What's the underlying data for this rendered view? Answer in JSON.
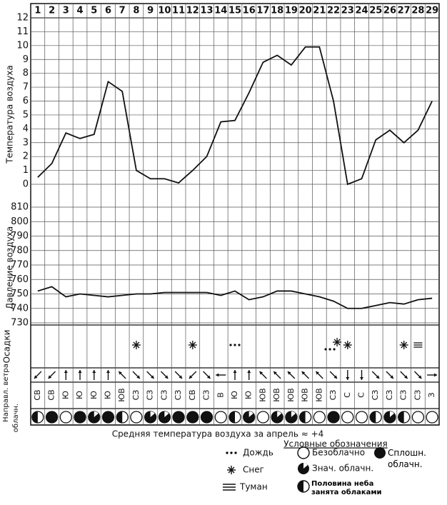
{
  "chart_data": [
    {
      "type": "line",
      "y_label": "Температура воздуха",
      "categories": [
        "1",
        "2",
        "3",
        "4",
        "5",
        "6",
        "7",
        "8",
        "9",
        "10",
        "11",
        "12",
        "13",
        "14",
        "15",
        "16",
        "17",
        "18",
        "19",
        "20",
        "21",
        "22",
        "23",
        "24",
        "25",
        "26",
        "27",
        "28",
        "29"
      ],
      "values": [
        0.5,
        1.5,
        3.7,
        3.3,
        3.6,
        7.4,
        6.7,
        1.0,
        0.4,
        0.4,
        0.1,
        1.0,
        2.0,
        4.5,
        4.6,
        6.6,
        8.8,
        9.3,
        8.6,
        9.9,
        9.9,
        6.0,
        0,
        0.4,
        3.2,
        3.9,
        3.0,
        3.9,
        6.0
      ],
      "color": "#111111",
      "ylim": [
        0,
        12
      ],
      "yticks": [
        0,
        1,
        2,
        3,
        4,
        5,
        6,
        7,
        8,
        9,
        10,
        11,
        12
      ],
      "grid": true
    },
    {
      "type": "line",
      "y_label": "Давление воздуха",
      "values": [
        752,
        755,
        748,
        750,
        749,
        748,
        749,
        750,
        750,
        751,
        751,
        751,
        751,
        749,
        752,
        746,
        748,
        752,
        752,
        750,
        748,
        745,
        740,
        740,
        742,
        744,
        743,
        746,
        747
      ],
      "color": "#111111",
      "ylim": [
        730,
        810
      ],
      "yticks": [
        730,
        740,
        750,
        760,
        770,
        780,
        790,
        800,
        810
      ],
      "grid": true
    }
  ],
  "precipitation": {
    "label": "Осадки",
    "days": [
      null,
      null,
      null,
      null,
      null,
      null,
      null,
      [
        "snow"
      ],
      null,
      null,
      null,
      [
        "snow"
      ],
      null,
      null,
      [
        "rain"
      ],
      null,
      null,
      null,
      null,
      null,
      null,
      [
        "rain",
        "snow"
      ],
      [
        "snow"
      ],
      null,
      null,
      null,
      [
        "snow"
      ],
      [
        "fog"
      ],
      null
    ]
  },
  "wind": {
    "label": "Направл. ветра",
    "directions": [
      "СВ",
      "СВ",
      "Ю",
      "Ю",
      "Ю",
      "Ю",
      "ЮВ",
      "СЗ",
      "СЗ",
      "СЗ",
      "СЗ",
      "СВ",
      "СЗ",
      "В",
      "Ю",
      "Ю",
      "ЮВ",
      "ЮВ",
      "ЮВ",
      "ЮВ",
      "ЮВ",
      "СЗ",
      "С",
      "С",
      "СЗ",
      "СЗ",
      "СЗ",
      "СЗ",
      "З"
    ]
  },
  "cloudiness": {
    "label": "облачн.",
    "days": [
      "half",
      "full",
      "clear",
      "full",
      "significant",
      "full",
      "half",
      "clear",
      "significant",
      "significant",
      "full",
      "full",
      "full",
      "clear",
      "half",
      "significant",
      "clear",
      "significant",
      "significant",
      "half",
      "clear",
      "full",
      "clear",
      "clear",
      "half",
      "significant",
      "half",
      "clear",
      "clear"
    ]
  },
  "footer": "Средняя температура воздуха за апрель ≈ +4",
  "legend": {
    "title": "Условные обозначения",
    "rain": "Дождь",
    "snow": "Снег",
    "fog": "Туман",
    "clear": "Безоблачно",
    "significant": "Знач. облачн.",
    "half": "Половина неба занята облаками",
    "full": "Сплошн. облачн."
  }
}
